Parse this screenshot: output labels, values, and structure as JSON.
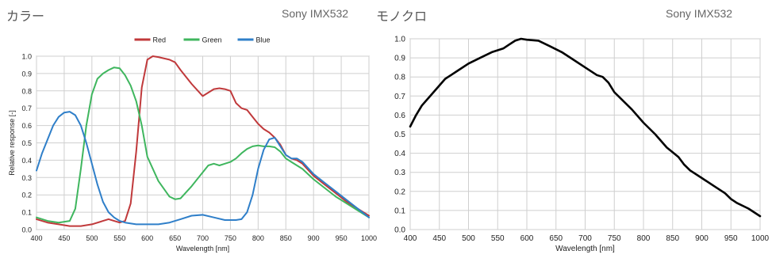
{
  "panels": [
    {
      "title": "カラー",
      "model": "Sony IMX532"
    },
    {
      "title": "モノクロ",
      "model": "Sony IMX532"
    }
  ],
  "chart_data": [
    {
      "type": "line",
      "title": "",
      "xlabel": "Wavelength [nm]",
      "ylabel": "Relative response [-]",
      "xlim": [
        400,
        1000
      ],
      "ylim": [
        0,
        1.0
      ],
      "xticks": [
        400,
        450,
        500,
        550,
        600,
        650,
        700,
        750,
        800,
        850,
        900,
        950,
        1000
      ],
      "yticks": [
        0.0,
        0.1,
        0.2,
        0.3,
        0.4,
        0.5,
        0.6,
        0.7,
        0.8,
        0.9,
        1.0
      ],
      "grid": true,
      "legend": "top-center",
      "series": [
        {
          "name": "Red",
          "color": "#c0393b",
          "x": [
            400,
            420,
            440,
            460,
            480,
            500,
            520,
            530,
            540,
            550,
            560,
            570,
            580,
            590,
            600,
            610,
            620,
            640,
            650,
            660,
            680,
            700,
            710,
            720,
            730,
            740,
            750,
            760,
            770,
            780,
            790,
            800,
            810,
            820,
            830,
            840,
            850,
            860,
            870,
            880,
            900,
            920,
            940,
            960,
            980,
            1000
          ],
          "y": [
            0.06,
            0.04,
            0.03,
            0.02,
            0.02,
            0.03,
            0.05,
            0.06,
            0.05,
            0.04,
            0.05,
            0.15,
            0.45,
            0.82,
            0.98,
            1.0,
            0.995,
            0.98,
            0.965,
            0.92,
            0.84,
            0.77,
            0.79,
            0.81,
            0.815,
            0.81,
            0.8,
            0.73,
            0.7,
            0.69,
            0.65,
            0.61,
            0.58,
            0.56,
            0.53,
            0.49,
            0.43,
            0.41,
            0.4,
            0.38,
            0.31,
            0.26,
            0.21,
            0.16,
            0.12,
            0.08
          ]
        },
        {
          "name": "Green",
          "color": "#3fb65e",
          "x": [
            400,
            420,
            440,
            460,
            470,
            480,
            490,
            500,
            510,
            520,
            530,
            540,
            550,
            560,
            570,
            580,
            590,
            600,
            620,
            640,
            650,
            660,
            680,
            700,
            710,
            720,
            730,
            740,
            750,
            760,
            770,
            780,
            790,
            800,
            810,
            820,
            830,
            840,
            850,
            860,
            870,
            880,
            900,
            920,
            940,
            960,
            980,
            1000
          ],
          "y": [
            0.07,
            0.05,
            0.04,
            0.05,
            0.12,
            0.35,
            0.6,
            0.78,
            0.87,
            0.9,
            0.92,
            0.935,
            0.93,
            0.89,
            0.83,
            0.74,
            0.6,
            0.42,
            0.28,
            0.19,
            0.175,
            0.18,
            0.25,
            0.33,
            0.37,
            0.38,
            0.37,
            0.38,
            0.39,
            0.41,
            0.44,
            0.465,
            0.48,
            0.485,
            0.48,
            0.48,
            0.475,
            0.45,
            0.41,
            0.39,
            0.37,
            0.35,
            0.29,
            0.24,
            0.19,
            0.15,
            0.11,
            0.07
          ]
        },
        {
          "name": "Blue",
          "color": "#2f7fc9",
          "x": [
            400,
            410,
            420,
            430,
            440,
            450,
            460,
            470,
            480,
            490,
            500,
            510,
            520,
            530,
            540,
            550,
            560,
            580,
            600,
            620,
            640,
            660,
            680,
            700,
            720,
            740,
            760,
            770,
            780,
            790,
            800,
            810,
            820,
            830,
            840,
            850,
            860,
            870,
            880,
            900,
            920,
            940,
            960,
            980,
            1000
          ],
          "y": [
            0.34,
            0.44,
            0.52,
            0.6,
            0.65,
            0.675,
            0.68,
            0.66,
            0.6,
            0.5,
            0.38,
            0.26,
            0.16,
            0.1,
            0.07,
            0.05,
            0.04,
            0.03,
            0.03,
            0.03,
            0.04,
            0.06,
            0.08,
            0.085,
            0.07,
            0.055,
            0.055,
            0.06,
            0.1,
            0.2,
            0.35,
            0.46,
            0.52,
            0.53,
            0.48,
            0.43,
            0.41,
            0.41,
            0.39,
            0.32,
            0.27,
            0.22,
            0.17,
            0.12,
            0.07
          ]
        }
      ]
    },
    {
      "type": "line",
      "title": "",
      "xlabel": "Wavelength [nm]",
      "ylabel": "",
      "xlim": [
        400,
        1000
      ],
      "ylim": [
        0,
        1.0
      ],
      "xticks": [
        400,
        450,
        500,
        550,
        600,
        650,
        700,
        750,
        800,
        850,
        900,
        950,
        1000
      ],
      "yticks": [
        0.0,
        0.1,
        0.2,
        0.3,
        0.4,
        0.5,
        0.6,
        0.7,
        0.8,
        0.9,
        1.0
      ],
      "grid": true,
      "legend": "none",
      "series": [
        {
          "color": "#000000",
          "x": [
            400,
            410,
            420,
            440,
            460,
            470,
            480,
            500,
            520,
            540,
            560,
            570,
            580,
            590,
            600,
            620,
            640,
            660,
            680,
            700,
            720,
            730,
            740,
            750,
            760,
            780,
            800,
            820,
            840,
            850,
            860,
            870,
            880,
            900,
            920,
            940,
            950,
            960,
            980,
            1000
          ],
          "y": [
            0.54,
            0.6,
            0.65,
            0.72,
            0.79,
            0.81,
            0.83,
            0.87,
            0.9,
            0.93,
            0.95,
            0.97,
            0.99,
            1.0,
            0.995,
            0.99,
            0.96,
            0.93,
            0.89,
            0.85,
            0.81,
            0.8,
            0.77,
            0.72,
            0.69,
            0.63,
            0.56,
            0.5,
            0.43,
            0.405,
            0.38,
            0.34,
            0.31,
            0.27,
            0.23,
            0.19,
            0.16,
            0.14,
            0.11,
            0.07
          ]
        }
      ]
    }
  ]
}
